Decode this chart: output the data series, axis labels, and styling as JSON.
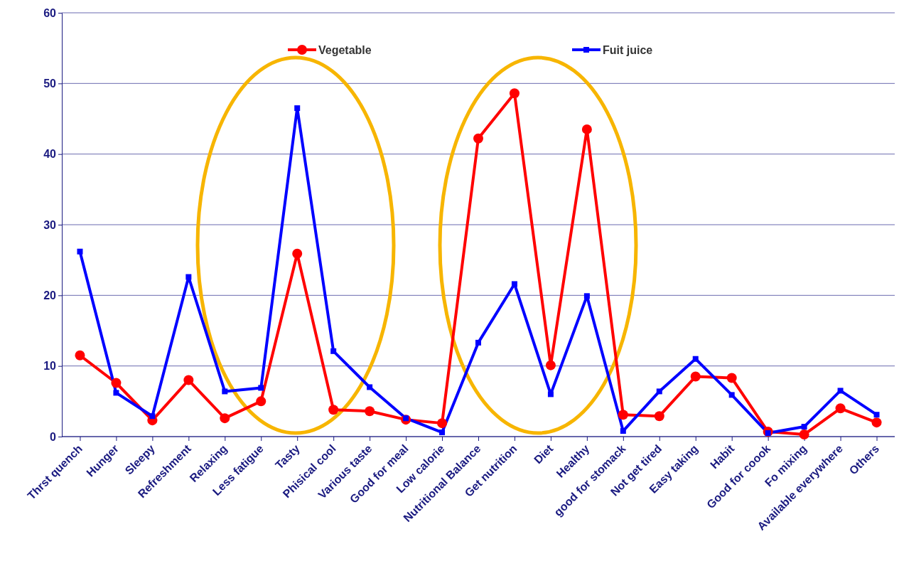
{
  "chart_data": {
    "type": "line",
    "categories": [
      "Thrst quench",
      "Hunger",
      "Sleepy",
      "Refreshment",
      "Relaxing",
      "Less fatigue",
      "Tasty",
      "Phisical cool",
      "Various taste",
      "Good for meal",
      "Low calorie",
      "Nutritional Balance",
      "Get nutrition",
      "Diet",
      "Healthy",
      "good for stomack",
      "Not get tired",
      "Easy taking",
      "Habit",
      "Good for coook",
      "Fo mixing",
      "Available everywhere",
      "Others"
    ],
    "series": [
      {
        "name": "Vegetable",
        "color": "#ff0000",
        "marker": "circle",
        "values": [
          11.5,
          7.6,
          2.3,
          8.0,
          2.6,
          5.0,
          25.9,
          3.8,
          3.6,
          2.4,
          1.9,
          42.2,
          48.6,
          10.1,
          43.5,
          3.1,
          2.9,
          8.5,
          8.3,
          0.7,
          0.3,
          4.0,
          2.0
        ]
      },
      {
        "name": "Fuit juice",
        "color": "#0000ff",
        "marker": "square",
        "values": [
          26.2,
          6.2,
          2.9,
          22.6,
          6.4,
          6.9,
          46.5,
          12.1,
          7.0,
          2.6,
          0.6,
          13.3,
          21.6,
          6.0,
          19.9,
          0.8,
          6.4,
          11.0,
          5.9,
          0.5,
          1.4,
          6.5,
          3.1
        ]
      }
    ],
    "ylim": [
      0,
      60
    ],
    "yticks": [
      0,
      10,
      20,
      30,
      40,
      50,
      60
    ],
    "grid": "y",
    "legend": "top",
    "line_style": "solid"
  }
}
